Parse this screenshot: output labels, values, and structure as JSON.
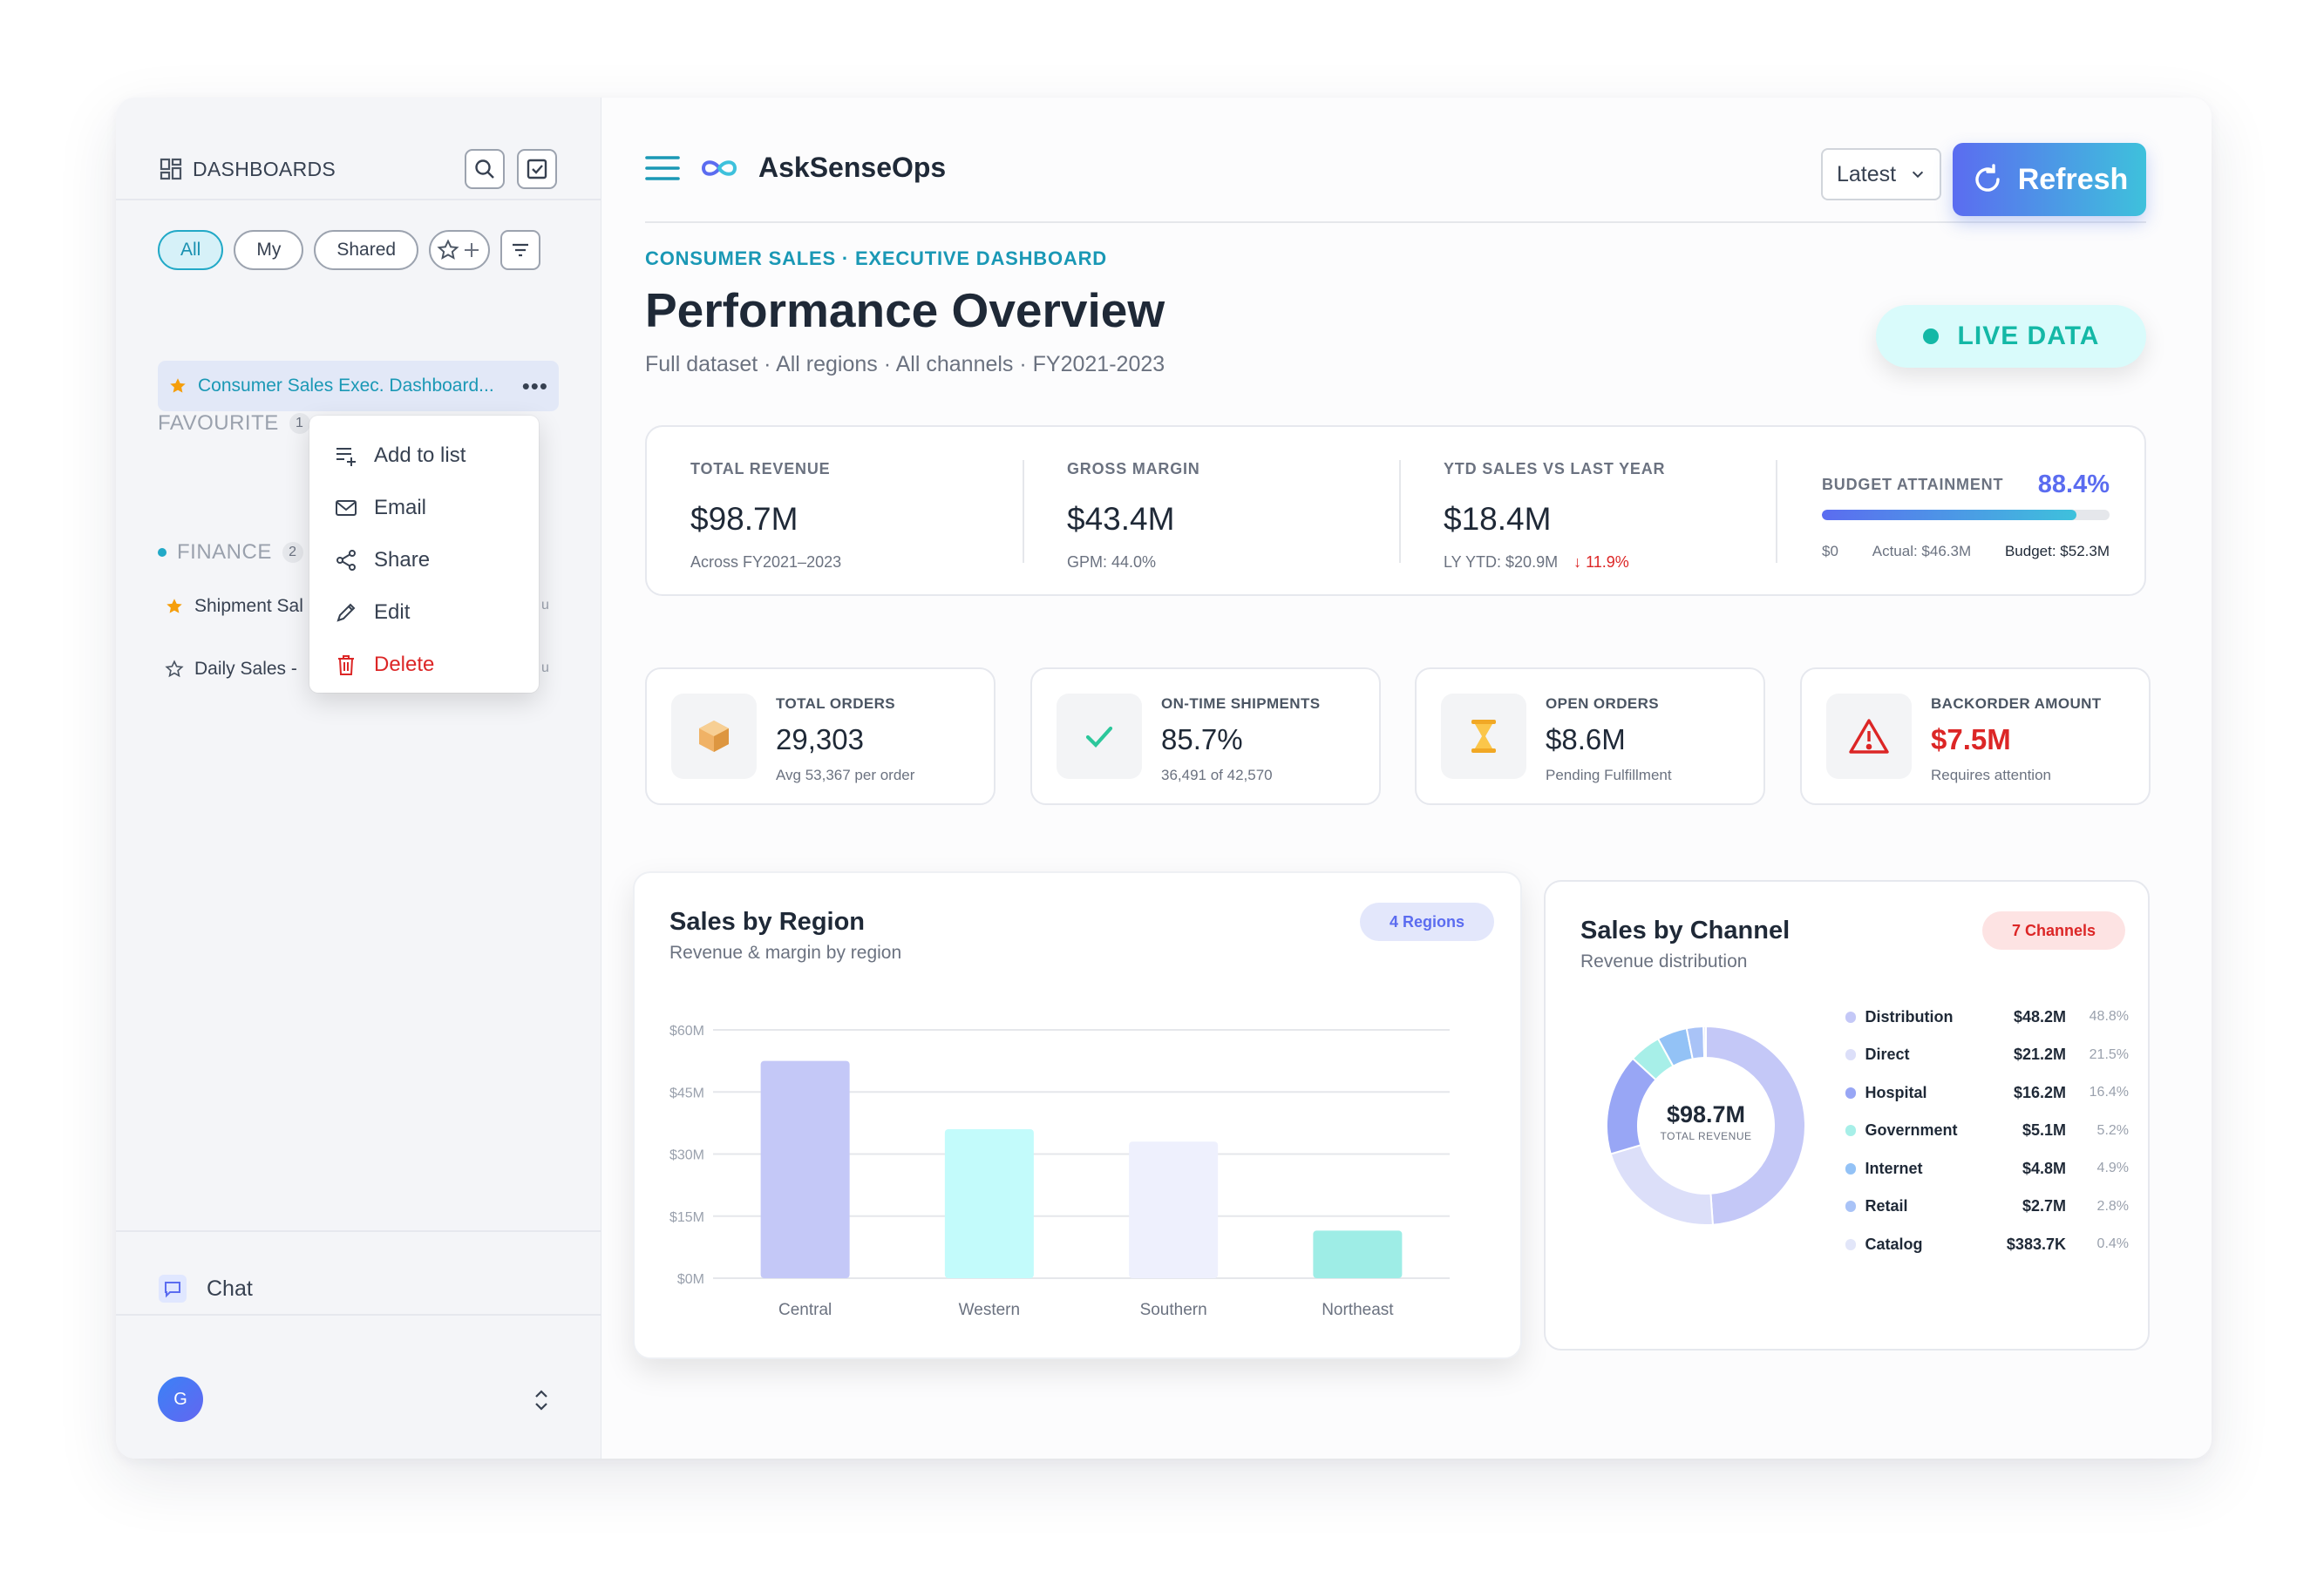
{
  "sidebar": {
    "title": "DASHBOARDS",
    "filters": [
      "All",
      "My",
      "Shared"
    ],
    "favourite": {
      "label": "FAVOURITE",
      "count": "1",
      "item": "Consumer Sales Exec. Dashboard..."
    },
    "finance": {
      "label": "FINANCE",
      "count": "2",
      "items": [
        "Shipment Sal",
        "Daily Sales -"
      ],
      "item_suffix": "u"
    },
    "context_menu": [
      "Add to list",
      "Email",
      "Share",
      "Edit",
      "Delete"
    ],
    "chat_label": "Chat",
    "avatar_initial": "G"
  },
  "header": {
    "app_name": "AskSenseOps",
    "period_select": "Latest",
    "refresh_label": "Refresh"
  },
  "page": {
    "kicker": "CONSUMER SALES · EXECUTIVE DASHBOARD",
    "title": "Performance Overview",
    "subtitle": "Full dataset · All regions · All channels · FY2021-2023",
    "live_label": "LIVE DATA"
  },
  "kpis": [
    {
      "label": "TOTAL REVENUE",
      "value": "$98.7M",
      "sub": "Across FY2021–2023",
      "delta": ""
    },
    {
      "label": "GROSS MARGIN",
      "value": "$43.4M",
      "sub": "GPM: 44.0%",
      "delta": ""
    },
    {
      "label": "YTD SALES VS LAST YEAR",
      "value": "$18.4M",
      "sub": "LY YTD: $20.9M",
      "delta": "↓ 11.9%"
    }
  ],
  "budget": {
    "label": "BUDGET ATTAINMENT",
    "pct": "88.4%",
    "fraction": 0.884,
    "min": "$0",
    "actual": "Actual: $46.3M",
    "budget": "Budget: $52.3M"
  },
  "cards": [
    {
      "label": "TOTAL ORDERS",
      "value": "29,303",
      "sub": "Avg 53,367 per order",
      "icon": "box-icon"
    },
    {
      "label": "ON-TIME SHIPMENTS",
      "value": "85.7%",
      "sub": "36,491 of 42,570",
      "icon": "check-icon"
    },
    {
      "label": "OPEN ORDERS",
      "value": "$8.6M",
      "sub": "Pending Fulfillment",
      "icon": "hourglass-icon"
    },
    {
      "label": "BACKORDER AMOUNT",
      "value": "$7.5M",
      "sub": "Requires attention",
      "icon": "warning-icon"
    }
  ],
  "region_panel": {
    "title": "Sales by Region",
    "subtitle": "Revenue & margin by region",
    "badge": "4 Regions"
  },
  "channel_panel": {
    "title": "Sales by Channel",
    "subtitle": "Revenue distribution",
    "badge": "7 Channels",
    "center_value": "$98.7M",
    "center_label": "TOTAL REVENUE"
  },
  "colors": {
    "accent_teal": "#1a98b5",
    "accent_indigo": "#5b6cf0",
    "negative": "#dc2626",
    "live": "#14b8a6"
  },
  "chart_data": [
    {
      "type": "bar",
      "title": "Sales by Region",
      "subtitle": "Revenue & margin by region",
      "categories": [
        "Central",
        "Western",
        "Southern",
        "Northeast"
      ],
      "values": [
        52.5,
        36,
        33,
        11.5
      ],
      "colors": [
        "#c4c8f7",
        "#c3fbfb",
        "#eef0fd",
        "#9eede6"
      ],
      "ylim": [
        0,
        60
      ],
      "yticks": [
        0,
        15,
        30,
        45,
        60
      ],
      "ytick_labels": [
        "$0M",
        "$15M",
        "$30M",
        "$45M",
        "$60M"
      ],
      "grid": true
    },
    {
      "type": "pie",
      "title": "Sales by Channel",
      "categories": [
        "Distribution",
        "Direct",
        "Hospital",
        "Government",
        "Internet",
        "Retail",
        "Catalog"
      ],
      "values": [
        48.2,
        21.2,
        16.2,
        5.1,
        4.8,
        2.7,
        0.3837
      ],
      "value_labels": [
        "$48.2M",
        "$21.2M",
        "$16.2M",
        "$5.1M",
        "$4.8M",
        "$2.7M",
        "$383.7K"
      ],
      "percents": [
        "48.8%",
        "21.5%",
        "16.4%",
        "5.2%",
        "4.9%",
        "2.8%",
        "0.4%"
      ],
      "colors": [
        "#c4c8f7",
        "#dcdff9",
        "#98a6f5",
        "#a7efe8",
        "#93c2f6",
        "#a9c3f7",
        "#e2e6f9"
      ]
    }
  ]
}
